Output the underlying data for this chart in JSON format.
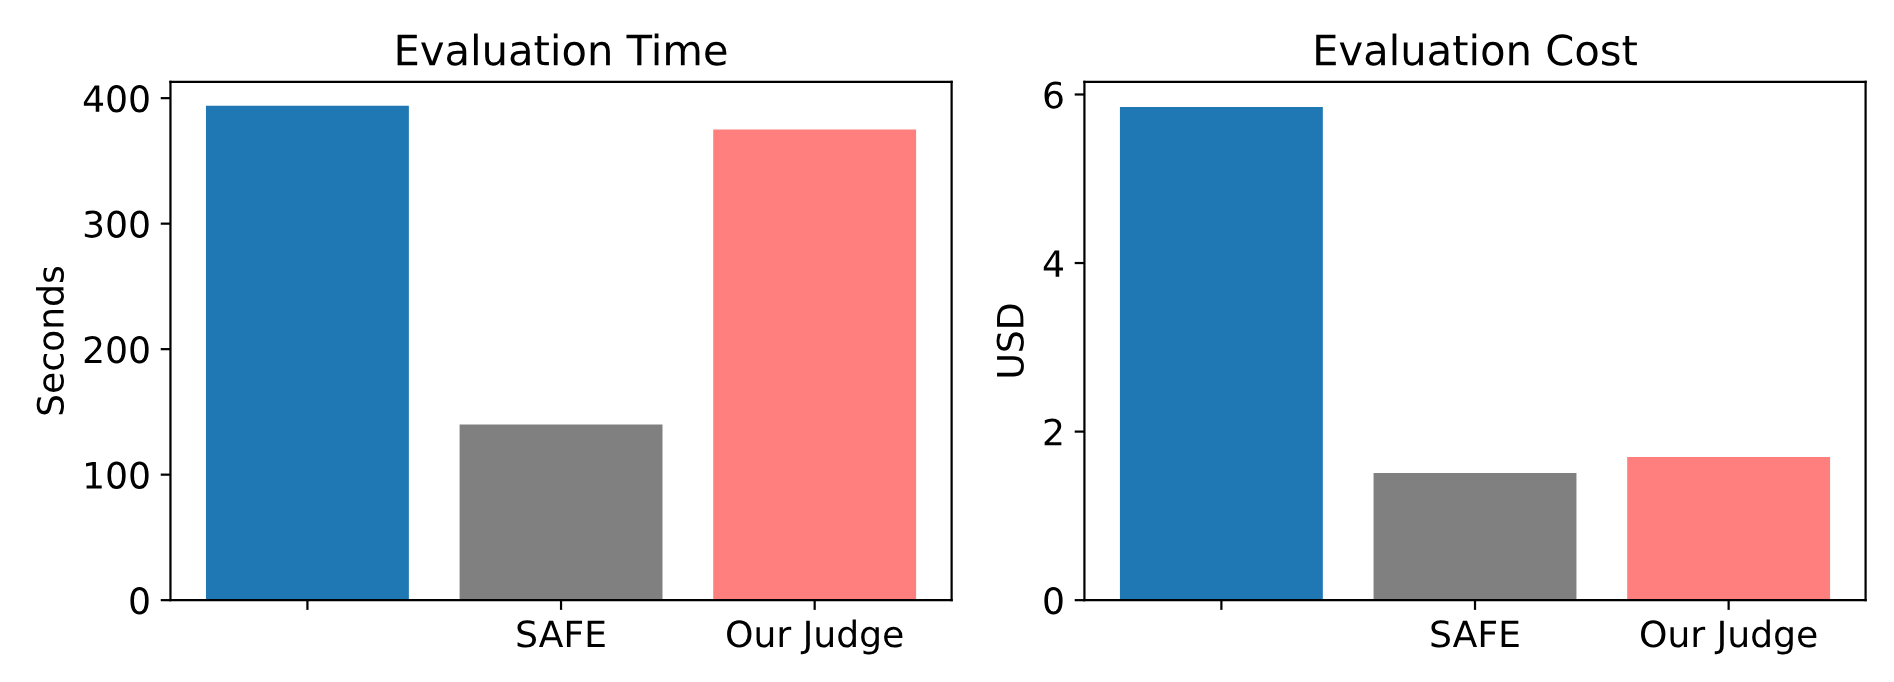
{
  "chart_data": [
    {
      "type": "bar",
      "title": "Evaluation Time",
      "ylabel": "Seconds",
      "categories": [
        null,
        "SAFE",
        "Our Judge"
      ],
      "values": [
        394,
        140,
        375
      ],
      "colors": [
        "#1f77b4",
        "#808080",
        "#ff7f7f"
      ],
      "ylim": [
        0,
        413
      ],
      "yticks": [
        0,
        100,
        200,
        300,
        400
      ],
      "grid": false
    },
    {
      "type": "bar",
      "title": "Evaluation Cost",
      "ylabel": "USD",
      "categories": [
        null,
        "SAFE",
        "Our Judge"
      ],
      "values": [
        5.85,
        1.51,
        1.7
      ],
      "colors": [
        "#1f77b4",
        "#808080",
        "#ff7f7f"
      ],
      "ylim": [
        0,
        6.15
      ],
      "yticks": [
        0,
        2,
        4,
        6
      ],
      "grid": false
    }
  ]
}
